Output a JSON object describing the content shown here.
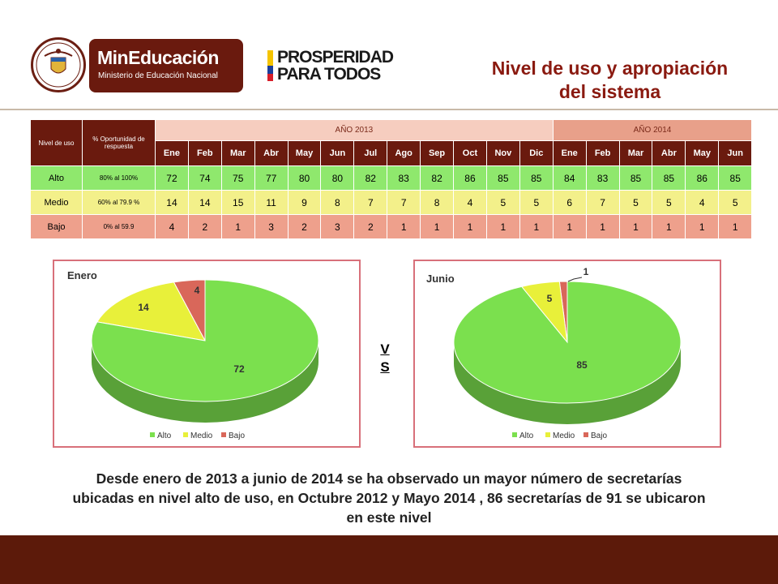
{
  "header": {
    "seal_text": "REPÚBLICA DE COLOMBIA",
    "logo1_title": "MinEducación",
    "logo1_subtitle": "Ministerio de Educación Nacional",
    "logo2_line1": "PROSPERIDAD",
    "logo2_line2": "PARA TODOS",
    "title_line1": "Nivel de uso y apropiación",
    "title_line2": "del sistema"
  },
  "table": {
    "col_nivel": "Nivel de uso",
    "col_oportunidad": "% Oportunidad de respuesta",
    "year_2013": "AÑO 2013",
    "year_2014": "AÑO 2014",
    "months_2013": [
      "Ene",
      "Feb",
      "Mar",
      "Abr",
      "May",
      "Jun",
      "Jul",
      "Ago",
      "Sep",
      "Oct",
      "Nov",
      "Dic"
    ],
    "months_2014": [
      "Ene",
      "Feb",
      "Mar",
      "Abr",
      "May",
      "Jun"
    ],
    "rows": [
      {
        "label": "Alto",
        "range": "80% al 100%",
        "values": [
          "72",
          "74",
          "75",
          "77",
          "80",
          "80",
          "82",
          "83",
          "82",
          "86",
          "85",
          "85",
          "84",
          "83",
          "85",
          "85",
          "86",
          "85"
        ]
      },
      {
        "label": "Medio",
        "range": "60% al 79.9 %",
        "values": [
          "14",
          "14",
          "15",
          "11",
          "9",
          "8",
          "7",
          "7",
          "8",
          "4",
          "5",
          "5",
          "6",
          "7",
          "5",
          "5",
          "4",
          "5"
        ]
      },
      {
        "label": "Bajo",
        "range": "0% al 59.9",
        "values": [
          "4",
          "2",
          "1",
          "3",
          "2",
          "3",
          "2",
          "1",
          "1",
          "1",
          "1",
          "1",
          "1",
          "1",
          "1",
          "1",
          "1",
          "1"
        ]
      }
    ]
  },
  "colors": {
    "alto": "#7be04e",
    "medio": "#e8f03a",
    "bajo": "#d9675a"
  },
  "chart_data": [
    {
      "type": "pie",
      "title": "Enero",
      "categories": [
        "Alto",
        "Medio",
        "Bajo"
      ],
      "values": [
        72,
        14,
        4
      ],
      "legend": "bottom"
    },
    {
      "type": "pie",
      "title": "Junio",
      "categories": [
        "Alto",
        "Medio",
        "Bajo"
      ],
      "values": [
        85,
        5,
        1
      ],
      "legend": "bottom"
    }
  ],
  "vs": [
    "V",
    "S"
  ],
  "footer": {
    "text": "Desde enero de 2013 a junio de 2014 se ha observado un mayor número de secretarías ubicadas en nivel alto de uso, en Octubre 2012 y Mayo 2014 , 86 secretarías de 91 se ubicaron en este nivel"
  }
}
